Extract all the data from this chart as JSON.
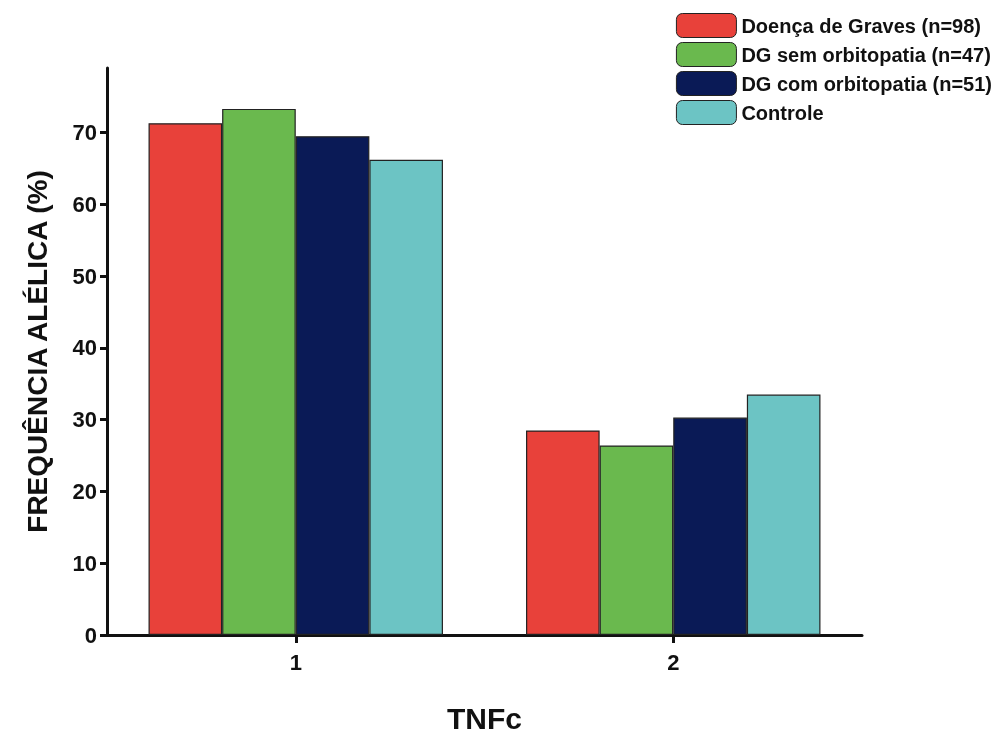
{
  "chart_data": {
    "type": "bar",
    "xlabel": "TNFc",
    "ylabel": "FREQUÊNCIA ALÉLICA (%)",
    "categories": [
      "1",
      "2"
    ],
    "series": [
      {
        "name": "Doença de Graves (n=98)",
        "color": "#e8413a",
        "values": [
          71.3,
          28.5
        ]
      },
      {
        "name": "DG sem orbitopatia (n=47)",
        "color": "#6ab94e",
        "values": [
          73.3,
          26.4
        ]
      },
      {
        "name": "DG com orbitopatia (n=51)",
        "color": "#0a1a56",
        "values": [
          69.5,
          30.3
        ]
      },
      {
        "name": "Controle",
        "color": "#6cc4c4",
        "values": [
          66.2,
          33.5
        ]
      }
    ],
    "ylim": [
      0,
      79
    ],
    "yticks": [
      0,
      10,
      20,
      30,
      40,
      50,
      60,
      70
    ],
    "grid": false,
    "legend": "top right"
  }
}
